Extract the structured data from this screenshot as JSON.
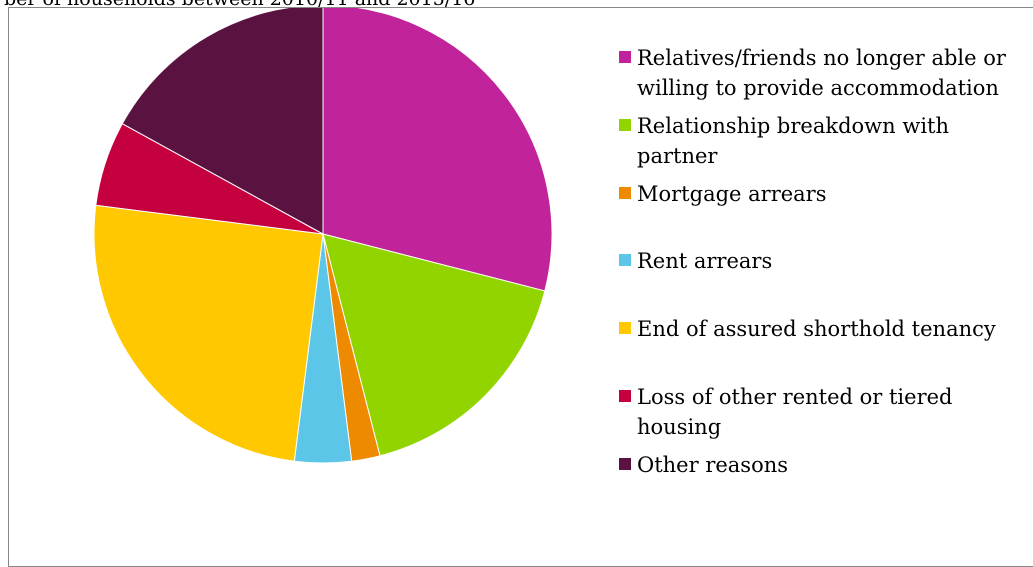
{
  "caption": "ber of households between 2010/11 and 2015/16",
  "chart_data": {
    "type": "pie",
    "title": "",
    "slices": [
      {
        "label": "Relatives/friends no longer able or willing to provide accommodation",
        "value": 29,
        "color": "#c0239a"
      },
      {
        "label": "Relationship breakdown with partner",
        "value": 17,
        "color": "#92d400"
      },
      {
        "label": "Mortgage arrears",
        "value": 2,
        "color": "#ee8a00"
      },
      {
        "label": "Rent arrears",
        "value": 4,
        "color": "#5bc6e8"
      },
      {
        "label": "End of assured shorthold tenancy",
        "value": 25,
        "color": "#ffc800"
      },
      {
        "label": "Loss of other rented or tiered housing",
        "value": 6,
        "color": "#c4003e"
      },
      {
        "label": "Other reasons",
        "value": 17,
        "color": "#5a1240"
      }
    ],
    "start_angle": "12 o'clock",
    "direction": "clockwise",
    "legend_position": "right",
    "edge_color": "#ffffff"
  }
}
